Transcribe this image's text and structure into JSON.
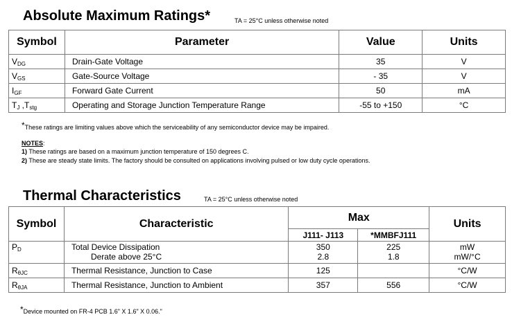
{
  "abs": {
    "title": "Absolute Maximum Ratings*",
    "condition": "TA = 25°C unless otherwise noted",
    "headers": [
      "Symbol",
      "Parameter",
      "Value",
      "Units"
    ],
    "rows": [
      {
        "sym": "V",
        "sub": "DG",
        "param": "Drain-Gate Voltage",
        "value": "35",
        "unit": "V"
      },
      {
        "sym": "V",
        "sub": "GS",
        "param": "Gate-Source Voltage",
        "value": "- 35",
        "unit": "V"
      },
      {
        "sym": "I",
        "sub": "GF",
        "param": "Forward Gate Current",
        "value": "50",
        "unit": "mA"
      },
      {
        "sym": "T",
        "sub": "J",
        "sym2": " ,T",
        "sub2": "stg",
        "param": "Operating and Storage Junction Temperature Range",
        "value": "-55 to +150",
        "unit": "°C"
      }
    ],
    "footnote": "These ratings are limiting values above which the serviceability of any semiconductor device may be impaired.",
    "notes_label": "NOTES",
    "notes": [
      {
        "num": "1)",
        "text": " These ratings are based on a maximum junction temperature of 150 degrees C."
      },
      {
        "num": "2)",
        "text": " These are steady state limits. The factory should be consulted on applications involving pulsed or low duty cycle operations."
      }
    ]
  },
  "thermal": {
    "title": "Thermal Characteristics",
    "condition": "TA = 25°C unless otherwise noted",
    "headers": {
      "symbol": "Symbol",
      "char": "Characteristic",
      "max": "Max",
      "units": "Units"
    },
    "subheaders": [
      "J111- J113",
      "*MMBFJ111"
    ],
    "rows": [
      {
        "sym": "P",
        "sub": "D",
        "char1": "Total Device Dissipation",
        "char2": "Derate above 25°C",
        "v1a": "350",
        "v1b": "2.8",
        "v2a": "225",
        "v2b": "1.8",
        "ua": "mW",
        "ub": "mW/°C"
      },
      {
        "sym": "R",
        "sub": "θJC",
        "char": "Thermal Resistance, Junction to Case",
        "v1": "125",
        "v2": "",
        "unit": "°C/W"
      },
      {
        "sym": "R",
        "sub": "θJA",
        "char": "Thermal Resistance, Junction to Ambient",
        "v1": "357",
        "v2": "556",
        "unit": "°C/W"
      }
    ],
    "footnote": "Device mounted on FR-4 PCB 1.6\" X 1.6\" X 0.06.\""
  }
}
